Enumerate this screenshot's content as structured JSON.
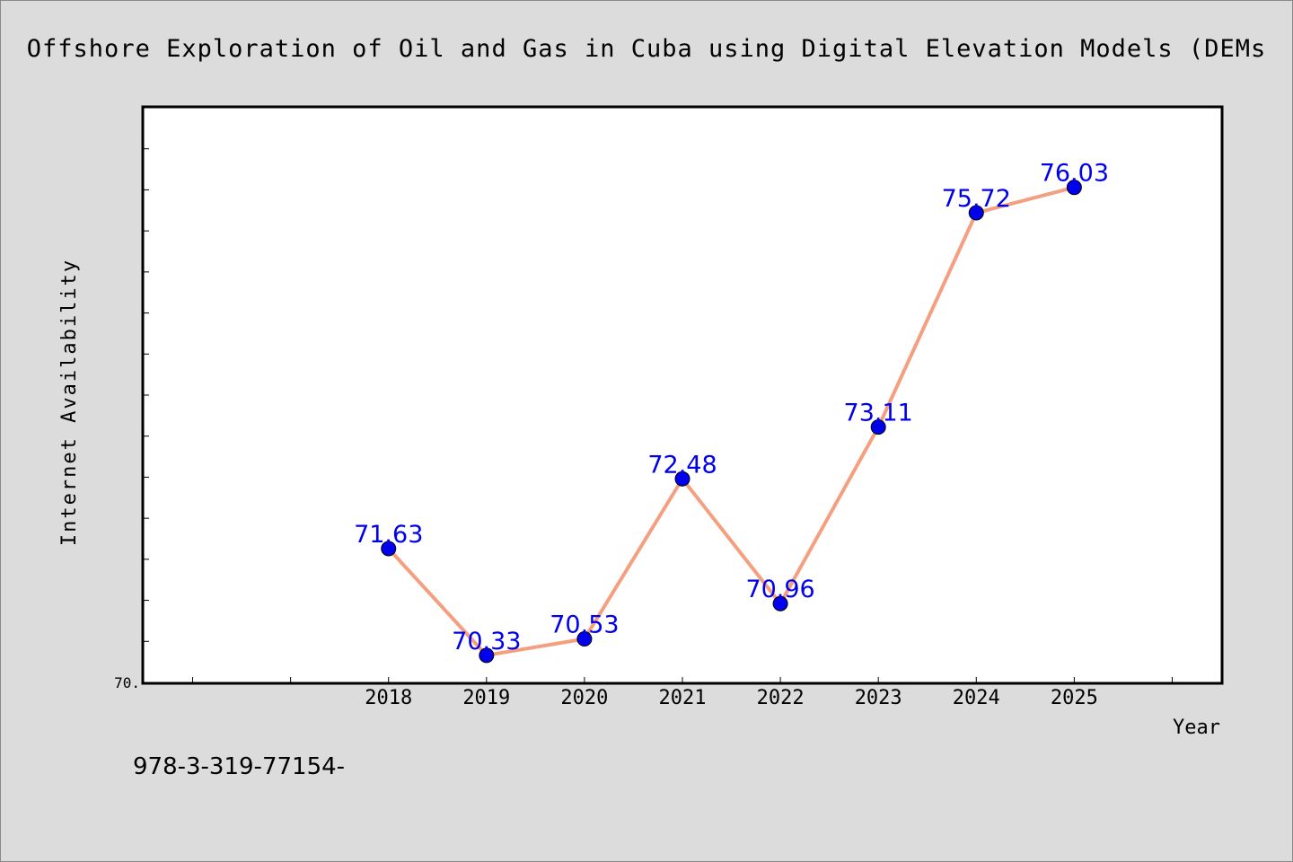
{
  "page": {
    "title": "Offshore Exploration of Oil and Gas in Cuba using Digital Elevation Models (DEMs",
    "footnote": "978-3-319-77154-"
  },
  "chart_data": {
    "type": "line",
    "title": "Offshore Exploration of Oil and Gas in Cuba using Digital Elevation Models (DEMs",
    "xlabel": "Year",
    "ylabel": "Internet Availability",
    "x": [
      2018,
      2019,
      2020,
      2021,
      2022,
      2023,
      2024,
      2025
    ],
    "x_tick_labels": [
      "2018",
      "2019",
      "2020",
      "2021",
      "2022",
      "2023",
      "2024",
      "2025"
    ],
    "xlim": [
      2015.5,
      2026.5
    ],
    "ylim": [
      70.0,
      77.0
    ],
    "y_tick_labels": [
      {
        "value": 70.0,
        "label": "70."
      }
    ],
    "series": [
      {
        "values": [
          71.63,
          70.33,
          70.53,
          72.48,
          70.96,
          73.11,
          75.72,
          76.03
        ],
        "data_labels": [
          "71.63",
          "70.33",
          "70.53",
          "72.48",
          "70.96",
          "73.11",
          "75.72",
          "76.03"
        ],
        "line_color": "#f4a080",
        "marker_color": "#0000ee",
        "label_color": "#0000ee"
      }
    ],
    "grid": false,
    "legend": "none"
  }
}
